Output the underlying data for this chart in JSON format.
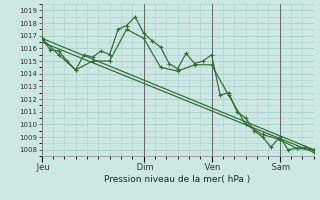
{
  "bg_color": "#cde8e4",
  "grid_color": "#a8ceca",
  "line_color": "#2d6e2d",
  "marker": "+",
  "xlabel": "Pression niveau de la mer( hPa )",
  "ylim": [
    1007.5,
    1019.5
  ],
  "yticks": [
    1008,
    1009,
    1010,
    1011,
    1012,
    1013,
    1014,
    1015,
    1016,
    1017,
    1018,
    1019
  ],
  "xlim": [
    0,
    192
  ],
  "xtick_positions": [
    0,
    72,
    120,
    168
  ],
  "xtick_labels": [
    "Jeu",
    "Dim",
    "Ven",
    "Sam"
  ],
  "series1_x": [
    0,
    6,
    12,
    18,
    24,
    30,
    36,
    42,
    48,
    54,
    60,
    66,
    72,
    78,
    84,
    90,
    96,
    102,
    108,
    114,
    120,
    126,
    132,
    138,
    144,
    150,
    156,
    162,
    168,
    174,
    180,
    186,
    192
  ],
  "series1_y": [
    1016.8,
    1015.9,
    1015.8,
    1015.0,
    1014.3,
    1015.5,
    1015.3,
    1015.8,
    1015.5,
    1017.5,
    1017.8,
    1018.5,
    1017.2,
    1016.6,
    1016.1,
    1014.8,
    1014.4,
    1015.6,
    1014.8,
    1015.0,
    1015.5,
    1012.3,
    1012.5,
    1011.0,
    1010.5,
    1009.5,
    1009.0,
    1008.2,
    1009.0,
    1008.0,
    1008.1,
    1008.2,
    1008.0
  ],
  "series2_x": [
    0,
    12,
    24,
    36,
    48,
    60,
    72,
    84,
    96,
    108,
    120,
    132,
    144,
    156,
    168,
    180,
    192
  ],
  "series2_y": [
    1016.8,
    1015.5,
    1014.3,
    1015.0,
    1015.0,
    1017.5,
    1016.8,
    1014.5,
    1014.2,
    1014.7,
    1014.7,
    1012.3,
    1010.0,
    1009.2,
    1008.8,
    1008.1,
    1008.0
  ],
  "series3_x": [
    0,
    192
  ],
  "series3_y": [
    1016.8,
    1008.0
  ],
  "series4_x": [
    0,
    192
  ],
  "series4_y": [
    1016.5,
    1007.8
  ]
}
